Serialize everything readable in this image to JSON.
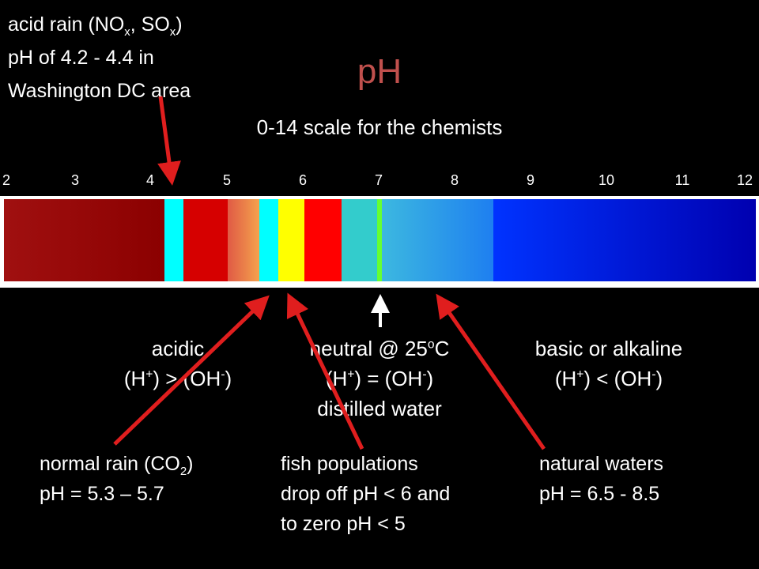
{
  "title": "pH",
  "subtitle": "0-14 scale for the chemists",
  "scale_ticks": [
    "2",
    "3",
    "4",
    "5",
    "6",
    "7",
    "8",
    "9",
    "10",
    "11",
    "12"
  ],
  "colors": {
    "title": "#c0504d",
    "arrow": "#e01e1e",
    "bands": [
      "#8b0000",
      "#00ffff",
      "#d60000",
      "#f08a4b",
      "#00ffff",
      "#ffff00",
      "#ff0000",
      "#33cccc",
      "#66ff33",
      "#1e90ff",
      "#0000cd"
    ]
  },
  "acid_rain": {
    "line1": "acid rain (NO",
    "sub1": "x",
    "sep": ", SO",
    "sub2": "x",
    "close": ")",
    "line2": "pH of 4.2 - 4.4 in",
    "line3": "Washington DC area"
  },
  "acidic": {
    "line1": "acidic",
    "line2": "(H+) > (OH-)"
  },
  "neutral": {
    "line1": "neutral @ 25",
    "sup": "o",
    "unit": "C",
    "line2": "(H+) = (OH-)",
    "line3": "distilled water"
  },
  "basic": {
    "line1": "basic or alkaline",
    "line2": "(H+) < (OH-)"
  },
  "normal_rain": {
    "line1": "normal rain (CO",
    "sub": "2",
    "close": ")",
    "line2": "pH = 5.3 – 5.7"
  },
  "fish": {
    "line1": "fish populations",
    "line2": "drop off pH < 6 and",
    "line3": "to zero pH < 5"
  },
  "natural_waters": {
    "line1": "natural waters",
    "line2": "pH = 6.5 - 8.5"
  }
}
